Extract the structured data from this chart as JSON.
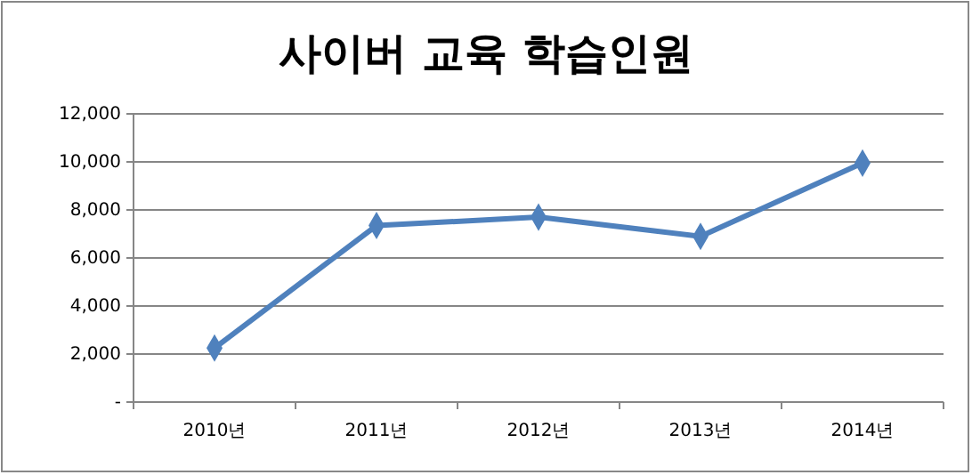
{
  "chart_data": {
    "type": "line",
    "title": "사이버 교육 학습인원",
    "categories": [
      "2010년",
      "2011년",
      "2012년",
      "2013년",
      "2014년"
    ],
    "series": [
      {
        "color": "#4f81bd",
        "values": [
          2250,
          7350,
          7700,
          6900,
          9950
        ]
      }
    ],
    "ylim": [
      0,
      12000
    ],
    "yticks": [
      {
        "value": 0,
        "label": "-"
      },
      {
        "value": 2000,
        "label": "2,000"
      },
      {
        "value": 4000,
        "label": "4,000"
      },
      {
        "value": 6000,
        "label": "6,000"
      },
      {
        "value": 8000,
        "label": "8,000"
      },
      {
        "value": 10000,
        "label": "10,000"
      },
      {
        "value": 12000,
        "label": "12,000"
      }
    ],
    "grid": "y",
    "marker": "diamond"
  }
}
